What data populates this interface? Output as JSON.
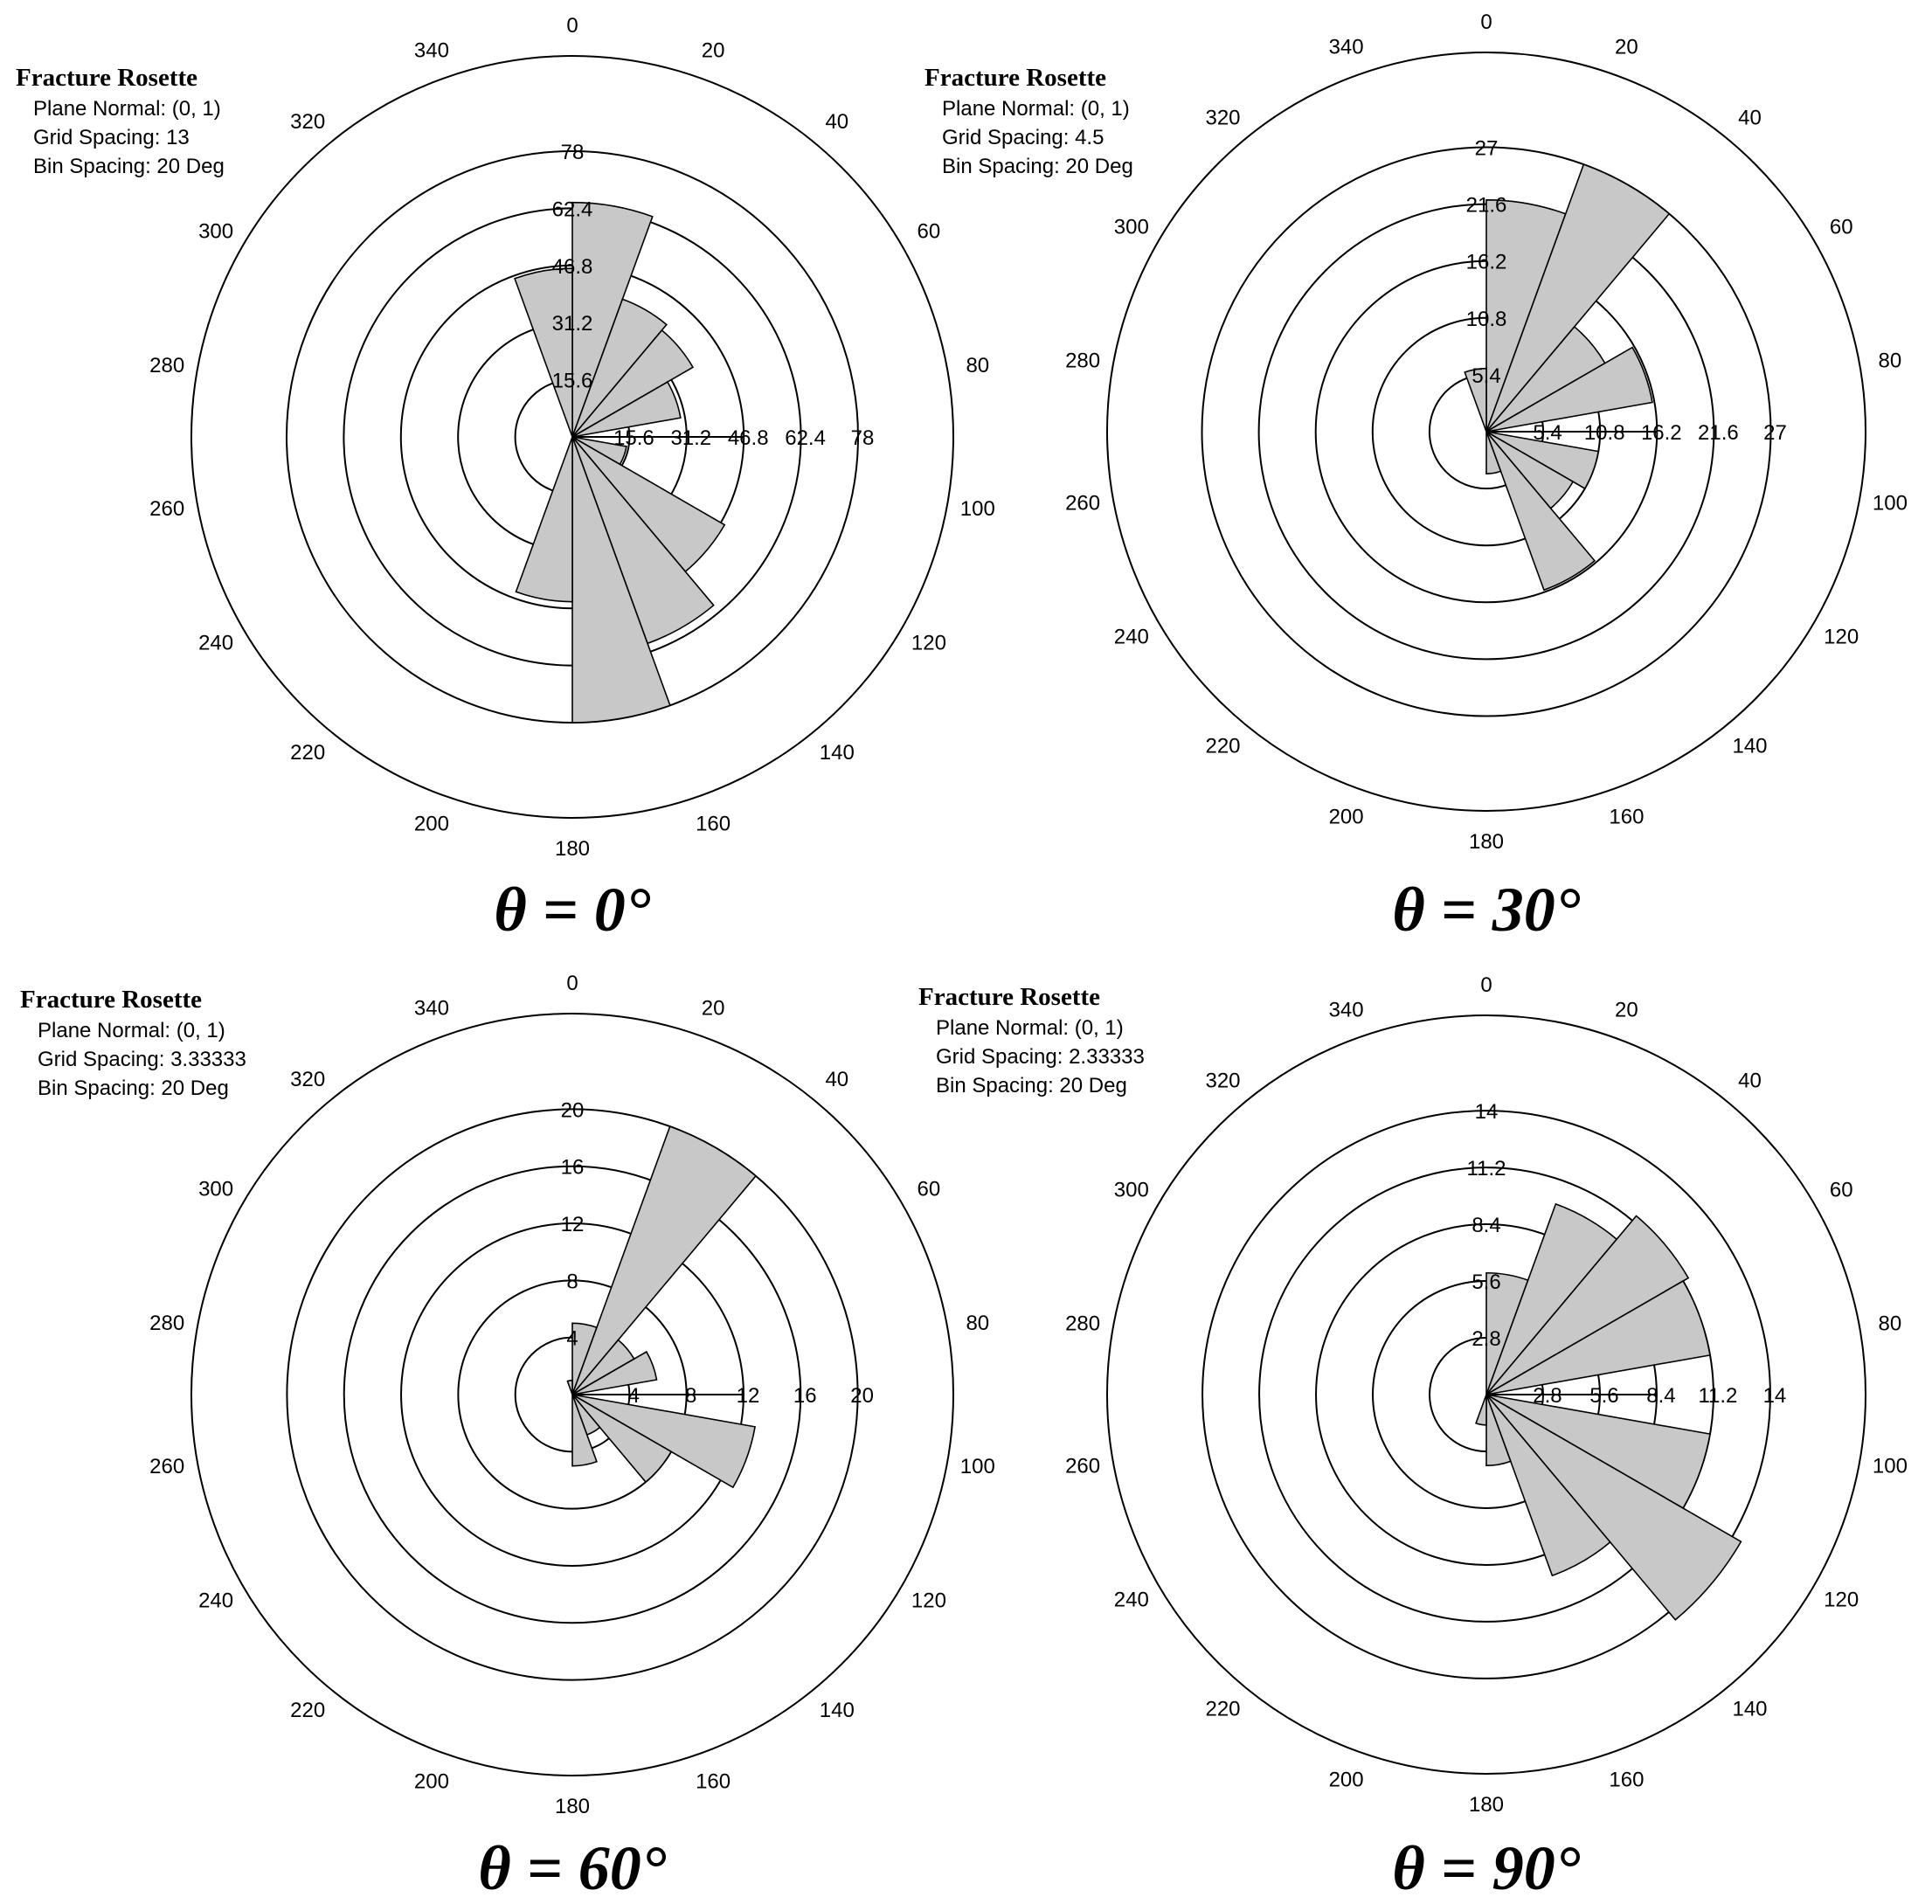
{
  "figure": {
    "colors": {
      "wedge_fill": "#c8c8c8",
      "line": "#000000",
      "background": "#ffffff"
    }
  },
  "chart_data": [
    {
      "type": "polar-rose",
      "legend_placement": "top-left",
      "panel_caption": "θ = 0°",
      "title": "Fracture Rosette",
      "info": [
        "Plane Normal: (0, 1)",
        "Grid Spacing: 13",
        "Bin Spacing: 20 Deg"
      ],
      "angle_ticks": [
        "0",
        "20",
        "40",
        "60",
        "80",
        "100",
        "120",
        "140",
        "160",
        "180",
        "200",
        "220",
        "240",
        "260",
        "280",
        "300",
        "320",
        "340"
      ],
      "radial_rings": [
        15.6,
        31.2,
        46.8,
        62.4,
        78
      ],
      "radial_labels": [
        "15.6",
        "31.2",
        "46.8",
        "62.4",
        "78"
      ],
      "rmax": 104,
      "bin_spacing_deg": 20,
      "bins": [
        {
          "start": 0,
          "end": 20,
          "value": 64.0
        },
        {
          "start": 20,
          "end": 40,
          "value": 40.0
        },
        {
          "start": 40,
          "end": 60,
          "value": 38.0
        },
        {
          "start": 60,
          "end": 80,
          "value": 30.0
        },
        {
          "start": 80,
          "end": 100,
          "value": 0
        },
        {
          "start": 100,
          "end": 120,
          "value": 15.0
        },
        {
          "start": 120,
          "end": 140,
          "value": 48.0
        },
        {
          "start": 140,
          "end": 160,
          "value": 60.0
        },
        {
          "start": 160,
          "end": 180,
          "value": 78.0
        },
        {
          "start": 180,
          "end": 200,
          "value": 45.0
        },
        {
          "start": 200,
          "end": 220,
          "value": 0
        },
        {
          "start": 220,
          "end": 240,
          "value": 0
        },
        {
          "start": 240,
          "end": 260,
          "value": 0
        },
        {
          "start": 260,
          "end": 280,
          "value": 0
        },
        {
          "start": 280,
          "end": 300,
          "value": 0
        },
        {
          "start": 300,
          "end": 320,
          "value": 0
        },
        {
          "start": 320,
          "end": 340,
          "value": 0
        },
        {
          "start": 340,
          "end": 360,
          "value": 46.0
        }
      ]
    },
    {
      "type": "polar-rose",
      "legend_placement": "top-left",
      "panel_caption": "θ = 30°",
      "title": "Fracture Rosette",
      "info": [
        "Plane Normal: (0, 1)",
        "Grid Spacing: 4.5",
        "Bin Spacing: 20 Deg"
      ],
      "angle_ticks": [
        "0",
        "20",
        "40",
        "60",
        "80",
        "100",
        "120",
        "140",
        "160",
        "180",
        "200",
        "220",
        "240",
        "260",
        "280",
        "300",
        "320",
        "340"
      ],
      "radial_rings": [
        5.4,
        10.8,
        16.2,
        21.6,
        27
      ],
      "radial_labels": [
        "5.4",
        "10.8",
        "16.2",
        "21.6",
        "27"
      ],
      "rmax": 36,
      "bin_spacing_deg": 20,
      "bins": [
        {
          "start": 0,
          "end": 20,
          "value": 22.0
        },
        {
          "start": 20,
          "end": 40,
          "value": 27.0
        },
        {
          "start": 40,
          "end": 60,
          "value": 13.0
        },
        {
          "start": 60,
          "end": 80,
          "value": 16.0
        },
        {
          "start": 80,
          "end": 100,
          "value": 0
        },
        {
          "start": 100,
          "end": 120,
          "value": 10.8
        },
        {
          "start": 120,
          "end": 140,
          "value": 9.5
        },
        {
          "start": 140,
          "end": 160,
          "value": 16.0
        },
        {
          "start": 160,
          "end": 180,
          "value": 4.0
        },
        {
          "start": 180,
          "end": 200,
          "value": 0
        },
        {
          "start": 200,
          "end": 220,
          "value": 0
        },
        {
          "start": 220,
          "end": 240,
          "value": 0
        },
        {
          "start": 240,
          "end": 260,
          "value": 0
        },
        {
          "start": 260,
          "end": 280,
          "value": 0
        },
        {
          "start": 280,
          "end": 300,
          "value": 0
        },
        {
          "start": 300,
          "end": 320,
          "value": 0
        },
        {
          "start": 320,
          "end": 340,
          "value": 0
        },
        {
          "start": 340,
          "end": 360,
          "value": 6.0
        }
      ]
    },
    {
      "type": "polar-rose",
      "legend_placement": "top-left",
      "panel_caption": "θ = 60°",
      "title": "Fracture Rosette",
      "info": [
        "Plane Normal: (0, 1)",
        "Grid Spacing: 3.33333",
        "Bin Spacing: 20 Deg"
      ],
      "angle_ticks": [
        "0",
        "20",
        "40",
        "60",
        "80",
        "100",
        "120",
        "140",
        "160",
        "180",
        "200",
        "220",
        "240",
        "260",
        "280",
        "300",
        "320",
        "340"
      ],
      "radial_rings": [
        4,
        8,
        12,
        16,
        20
      ],
      "radial_labels": [
        "4",
        "8",
        "12",
        "16",
        "20"
      ],
      "rmax": 26.7,
      "bin_spacing_deg": 20,
      "bins": [
        {
          "start": 0,
          "end": 20,
          "value": 5.0
        },
        {
          "start": 20,
          "end": 40,
          "value": 20.0
        },
        {
          "start": 40,
          "end": 60,
          "value": 5.0
        },
        {
          "start": 60,
          "end": 80,
          "value": 6.0
        },
        {
          "start": 80,
          "end": 100,
          "value": 0
        },
        {
          "start": 100,
          "end": 120,
          "value": 13.0
        },
        {
          "start": 120,
          "end": 140,
          "value": 8.0
        },
        {
          "start": 140,
          "end": 160,
          "value": 3.0
        },
        {
          "start": 160,
          "end": 180,
          "value": 5.0
        },
        {
          "start": 180,
          "end": 200,
          "value": 0
        },
        {
          "start": 200,
          "end": 220,
          "value": 0
        },
        {
          "start": 220,
          "end": 240,
          "value": 0
        },
        {
          "start": 240,
          "end": 260,
          "value": 0
        },
        {
          "start": 260,
          "end": 280,
          "value": 0
        },
        {
          "start": 280,
          "end": 300,
          "value": 0
        },
        {
          "start": 300,
          "end": 320,
          "value": 0
        },
        {
          "start": 320,
          "end": 340,
          "value": 0
        },
        {
          "start": 340,
          "end": 360,
          "value": 1.0
        }
      ]
    },
    {
      "type": "polar-rose",
      "legend_placement": "top-left",
      "panel_caption": "θ = 90°",
      "title": "Fracture Rosette",
      "info": [
        "Plane Normal: (0, 1)",
        "Grid Spacing: 2.33333",
        "Bin Spacing: 20 Deg"
      ],
      "angle_ticks": [
        "0",
        "20",
        "40",
        "60",
        "80",
        "100",
        "120",
        "140",
        "160",
        "180",
        "200",
        "220",
        "240",
        "260",
        "280",
        "300",
        "320",
        "340"
      ],
      "radial_rings": [
        2.8,
        5.6,
        8.4,
        11.2,
        14
      ],
      "radial_labels": [
        "2.8",
        "5.6",
        "8.4",
        "11.2",
        "14"
      ],
      "rmax": 18.7,
      "bin_spacing_deg": 20,
      "bins": [
        {
          "start": 0,
          "end": 20,
          "value": 6.0
        },
        {
          "start": 20,
          "end": 40,
          "value": 10.0
        },
        {
          "start": 40,
          "end": 60,
          "value": 11.5
        },
        {
          "start": 60,
          "end": 80,
          "value": 11.2
        },
        {
          "start": 80,
          "end": 100,
          "value": 0
        },
        {
          "start": 100,
          "end": 120,
          "value": 11.2
        },
        {
          "start": 120,
          "end": 140,
          "value": 14.5
        },
        {
          "start": 140,
          "end": 160,
          "value": 9.5
        },
        {
          "start": 160,
          "end": 180,
          "value": 3.5
        },
        {
          "start": 180,
          "end": 200,
          "value": 1.5
        },
        {
          "start": 200,
          "end": 220,
          "value": 0
        },
        {
          "start": 220,
          "end": 240,
          "value": 0
        },
        {
          "start": 240,
          "end": 260,
          "value": 0
        },
        {
          "start": 260,
          "end": 280,
          "value": 0
        },
        {
          "start": 280,
          "end": 300,
          "value": 0
        },
        {
          "start": 300,
          "end": 320,
          "value": 0
        },
        {
          "start": 320,
          "end": 340,
          "value": 0
        },
        {
          "start": 340,
          "end": 360,
          "value": 0
        }
      ]
    }
  ]
}
